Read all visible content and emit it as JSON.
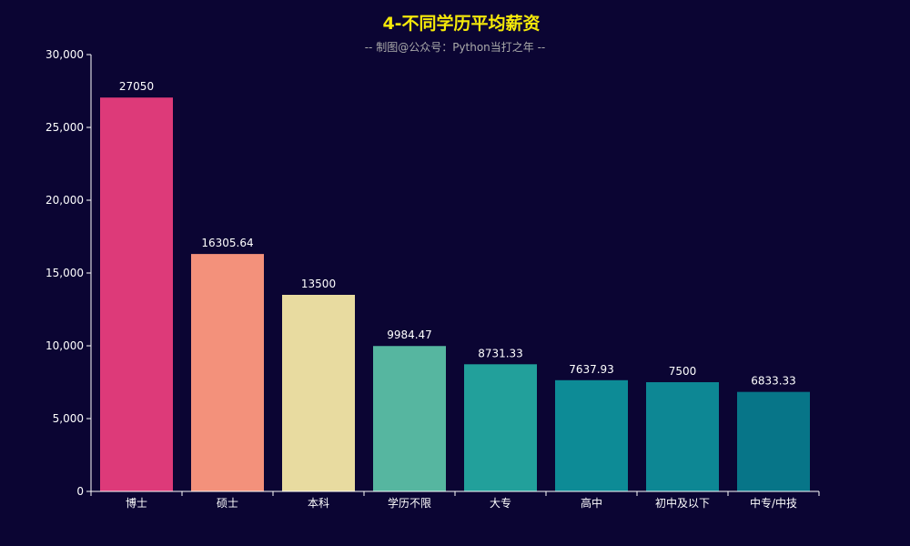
{
  "chart_data": {
    "type": "bar",
    "title": "4-不同学历平均薪资",
    "subtitle": "-- 制图@公众号：Python当打之年 --",
    "categories": [
      "博士",
      "硕士",
      "本科",
      "学历不限",
      "大专",
      "高中",
      "初中及以下",
      "中专/中技"
    ],
    "values": [
      27050,
      16305.64,
      13500,
      9984.47,
      8731.33,
      7637.93,
      7500,
      6833.33
    ],
    "value_labels": [
      "27050",
      "16305.64",
      "13500",
      "9984.47",
      "8731.33",
      "7637.93",
      "7500",
      "6833.33"
    ],
    "ylim": [
      0,
      30000
    ],
    "yticks": [
      0,
      5000,
      10000,
      15000,
      20000,
      25000,
      30000
    ],
    "ytick_labels": [
      "0",
      "5,000",
      "10,000",
      "15,000",
      "20,000",
      "25,000",
      "30,000"
    ],
    "colors": [
      "#dd3a79",
      "#f3917b",
      "#e8dba0",
      "#56b6a0",
      "#22a09b",
      "#0d8b96",
      "#0d8794",
      "#077588"
    ],
    "background": "#0b0533",
    "title_color": "#f5e90a",
    "grid": false,
    "legend": "none"
  }
}
